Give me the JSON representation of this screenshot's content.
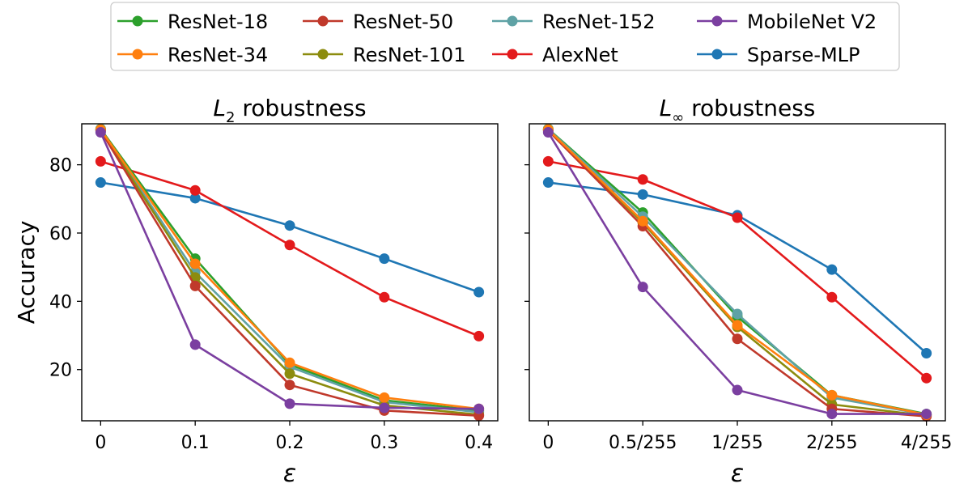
{
  "chart_data": [
    {
      "type": "line",
      "title_main": "L",
      "title_sub": "2",
      "title_rest": " robustness",
      "xlabel": "ε",
      "ylabel": "Accuracy",
      "x_ticks": [
        "0",
        "0.1",
        "0.2",
        "0.3",
        "0.4"
      ],
      "x_values": [
        0,
        0.1,
        0.2,
        0.3,
        0.4
      ],
      "xlim": [
        -0.02,
        0.42
      ],
      "ylim": [
        5,
        92
      ],
      "y_ticks": [
        20,
        40,
        60,
        80
      ],
      "y_tick_labels": [
        "20",
        "40",
        "60",
        "80"
      ],
      "series": [
        {
          "name": "ResNet-18",
          "color": "#2ca02c",
          "values": [
            90.5,
            52.5,
            21.5,
            11.0,
            8.0
          ]
        },
        {
          "name": "ResNet-34",
          "color": "#ff7f0e",
          "values": [
            90.3,
            51.0,
            22.0,
            11.8,
            8.5
          ]
        },
        {
          "name": "ResNet-50",
          "color": "#c0392b",
          "values": [
            90.0,
            44.5,
            15.5,
            8.0,
            6.5
          ]
        },
        {
          "name": "ResNet-101",
          "color": "#8c8c0e",
          "values": [
            90.2,
            47.0,
            18.8,
            9.5,
            6.8
          ]
        },
        {
          "name": "ResNet-152",
          "color": "#5fa2a5",
          "values": [
            90.4,
            48.5,
            20.8,
            10.5,
            7.5
          ]
        },
        {
          "name": "AlexNet",
          "color": "#e31a1c",
          "values": [
            81.0,
            72.5,
            56.5,
            41.2,
            29.8
          ]
        },
        {
          "name": "MobileNet V2",
          "color": "#7b3fa0",
          "values": [
            89.5,
            27.3,
            10.0,
            8.8,
            8.5
          ]
        },
        {
          "name": "Sparse-MLP",
          "color": "#1f77b4",
          "values": [
            74.8,
            70.2,
            62.2,
            52.5,
            42.7
          ]
        }
      ]
    },
    {
      "type": "line",
      "title_main": "L",
      "title_sub": "∞",
      "title_rest": " robustness",
      "xlabel": "ε",
      "ylabel": "",
      "x_ticks": [
        "0",
        "0.5/255",
        "1/255",
        "2/255",
        "4/255"
      ],
      "x_values": [
        0,
        1,
        2,
        3,
        4
      ],
      "xlim": [
        -0.2,
        4.2
      ],
      "ylim": [
        5,
        92
      ],
      "y_ticks": [
        20,
        40,
        60,
        80
      ],
      "y_tick_labels": [
        "",
        "",
        "",
        ""
      ],
      "series": [
        {
          "name": "ResNet-18",
          "color": "#2ca02c",
          "values": [
            90.5,
            66.0,
            35.5,
            12.5,
            7.0
          ]
        },
        {
          "name": "ResNet-34",
          "color": "#ff7f0e",
          "values": [
            90.3,
            63.5,
            33.0,
            12.5,
            6.8
          ]
        },
        {
          "name": "ResNet-50",
          "color": "#c0392b",
          "values": [
            90.0,
            62.0,
            29.0,
            8.5,
            6.3
          ]
        },
        {
          "name": "ResNet-101",
          "color": "#8c8c0e",
          "values": [
            90.2,
            63.0,
            32.5,
            9.8,
            6.5
          ]
        },
        {
          "name": "ResNet-152",
          "color": "#5fa2a5",
          "values": [
            90.4,
            64.8,
            36.3,
            11.8,
            6.8
          ]
        },
        {
          "name": "AlexNet",
          "color": "#e31a1c",
          "values": [
            81.0,
            75.7,
            64.5,
            41.2,
            17.5
          ]
        },
        {
          "name": "MobileNet V2",
          "color": "#7b3fa0",
          "values": [
            89.5,
            44.2,
            14.0,
            7.0,
            7.0
          ]
        },
        {
          "name": "Sparse-MLP",
          "color": "#1f77b4",
          "values": [
            74.8,
            71.3,
            65.2,
            49.3,
            24.8
          ]
        }
      ]
    }
  ],
  "legend": {
    "placement": "top-center",
    "entries": [
      {
        "name": "ResNet-18",
        "color": "#2ca02c"
      },
      {
        "name": "ResNet-50",
        "color": "#c0392b"
      },
      {
        "name": "ResNet-152",
        "color": "#5fa2a5"
      },
      {
        "name": "MobileNet V2",
        "color": "#7b3fa0"
      },
      {
        "name": "ResNet-34",
        "color": "#ff7f0e"
      },
      {
        "name": "ResNet-101",
        "color": "#8c8c0e"
      },
      {
        "name": "AlexNet",
        "color": "#e31a1c"
      },
      {
        "name": "Sparse-MLP",
        "color": "#1f77b4"
      }
    ]
  }
}
